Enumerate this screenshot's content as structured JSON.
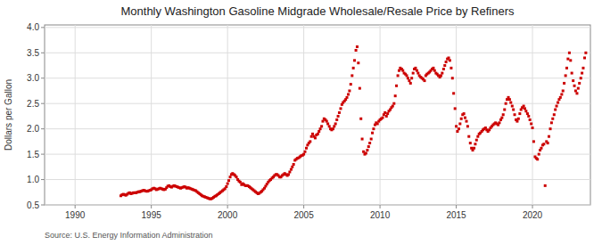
{
  "chart_data": {
    "type": "scatter",
    "title": "Monthly Washington Gasoline Midgrade Wholesale/Resale Price by Refiners",
    "ylabel": "Dollars per Gallon",
    "source": "Source: U.S. Energy Information Administration",
    "color": "#cc0000",
    "marker": "square",
    "grid": true,
    "xlim": [
      1988.0,
      2023.8
    ],
    "ylim": [
      0.5,
      4.05
    ],
    "xticks": [
      1990,
      1995,
      2000,
      2005,
      2010,
      2015,
      2020
    ],
    "yticks": [
      0.5,
      {
        "value": 1.0,
        "label": "1.0"
      },
      1.5,
      {
        "value": 2.0,
        "label": "2.0"
      },
      2.5,
      {
        "value": 3.0,
        "label": "3.0"
      },
      3.5,
      {
        "value": 4.0,
        "label": "4.0"
      }
    ],
    "x": [
      1993.0,
      1993.08,
      1993.17,
      1993.25,
      1993.33,
      1993.42,
      1993.5,
      1993.58,
      1993.67,
      1993.75,
      1993.83,
      1993.92,
      1994.0,
      1994.08,
      1994.17,
      1994.25,
      1994.33,
      1994.42,
      1994.5,
      1994.58,
      1994.67,
      1994.75,
      1994.83,
      1994.92,
      1995.0,
      1995.08,
      1995.17,
      1995.25,
      1995.33,
      1995.42,
      1995.5,
      1995.58,
      1995.67,
      1995.75,
      1995.83,
      1995.92,
      1996.0,
      1996.08,
      1996.17,
      1996.25,
      1996.33,
      1996.42,
      1996.5,
      1996.58,
      1996.67,
      1996.75,
      1996.83,
      1996.92,
      1997.0,
      1997.08,
      1997.17,
      1997.25,
      1997.33,
      1997.42,
      1997.5,
      1997.58,
      1997.67,
      1997.75,
      1997.83,
      1997.92,
      1998.0,
      1998.08,
      1998.17,
      1998.25,
      1998.33,
      1998.42,
      1998.5,
      1998.58,
      1998.67,
      1998.75,
      1998.83,
      1998.92,
      1999.0,
      1999.08,
      1999.17,
      1999.25,
      1999.33,
      1999.42,
      1999.5,
      1999.58,
      1999.67,
      1999.75,
      1999.83,
      1999.92,
      2000.0,
      2000.08,
      2000.17,
      2000.25,
      2000.33,
      2000.42,
      2000.5,
      2000.58,
      2000.67,
      2000.75,
      2000.83,
      2000.92,
      2001.0,
      2001.08,
      2001.17,
      2001.25,
      2001.33,
      2001.42,
      2001.5,
      2001.58,
      2001.67,
      2001.75,
      2001.83,
      2001.92,
      2002.0,
      2002.08,
      2002.17,
      2002.25,
      2002.33,
      2002.42,
      2002.5,
      2002.58,
      2002.67,
      2002.75,
      2002.83,
      2002.92,
      2003.0,
      2003.08,
      2003.17,
      2003.25,
      2003.33,
      2003.42,
      2003.5,
      2003.58,
      2003.67,
      2003.75,
      2003.83,
      2003.92,
      2004.0,
      2004.08,
      2004.17,
      2004.25,
      2004.33,
      2004.42,
      2004.5,
      2004.58,
      2004.67,
      2004.75,
      2004.83,
      2004.92,
      2005.0,
      2005.08,
      2005.17,
      2005.25,
      2005.33,
      2005.42,
      2005.5,
      2005.58,
      2005.67,
      2005.75,
      2005.83,
      2005.92,
      2006.0,
      2006.08,
      2006.17,
      2006.25,
      2006.33,
      2006.42,
      2006.5,
      2006.58,
      2006.67,
      2006.75,
      2006.83,
      2006.92,
      2007.0,
      2007.08,
      2007.17,
      2007.25,
      2007.33,
      2007.42,
      2007.5,
      2007.58,
      2007.67,
      2007.75,
      2007.83,
      2007.92,
      2008.0,
      2008.08,
      2008.17,
      2008.25,
      2008.33,
      2008.42,
      2008.5,
      2008.58,
      2008.67,
      2008.75,
      2008.83,
      2008.92,
      2009.0,
      2009.08,
      2009.17,
      2009.25,
      2009.33,
      2009.42,
      2009.5,
      2009.58,
      2009.67,
      2009.75,
      2009.83,
      2009.92,
      2010.0,
      2010.08,
      2010.17,
      2010.25,
      2010.33,
      2010.42,
      2010.5,
      2010.58,
      2010.67,
      2010.75,
      2010.83,
      2010.92,
      2011.0,
      2011.08,
      2011.17,
      2011.25,
      2011.33,
      2011.42,
      2011.5,
      2011.58,
      2011.67,
      2011.75,
      2011.83,
      2011.92,
      2012.0,
      2012.08,
      2012.17,
      2012.25,
      2012.33,
      2012.42,
      2012.5,
      2012.58,
      2012.67,
      2012.75,
      2012.83,
      2012.92,
      2013.0,
      2013.08,
      2013.17,
      2013.25,
      2013.33,
      2013.42,
      2013.5,
      2013.58,
      2013.67,
      2013.75,
      2013.83,
      2013.92,
      2014.0,
      2014.08,
      2014.17,
      2014.25,
      2014.33,
      2014.42,
      2014.5,
      2014.58,
      2014.67,
      2014.75,
      2014.83,
      2014.92,
      2015.0,
      2015.08,
      2015.17,
      2015.25,
      2015.33,
      2015.42,
      2015.5,
      2015.58,
      2015.67,
      2015.75,
      2015.83,
      2015.92,
      2016.0,
      2016.08,
      2016.17,
      2016.25,
      2016.33,
      2016.42,
      2016.5,
      2016.58,
      2016.67,
      2016.75,
      2016.83,
      2016.92,
      2017.0,
      2017.08,
      2017.17,
      2017.25,
      2017.33,
      2017.42,
      2017.5,
      2017.58,
      2017.67,
      2017.75,
      2017.83,
      2017.92,
      2018.0,
      2018.08,
      2018.17,
      2018.25,
      2018.33,
      2018.42,
      2018.5,
      2018.58,
      2018.67,
      2018.75,
      2018.83,
      2018.92,
      2019.0,
      2019.08,
      2019.17,
      2019.25,
      2019.33,
      2019.42,
      2019.5,
      2019.58,
      2019.67,
      2019.75,
      2019.83,
      2019.92,
      2020.0,
      2020.08,
      2020.17,
      2020.25,
      2020.33,
      2020.42,
      2020.5,
      2020.58,
      2020.67,
      2020.75,
      2020.83,
      2020.92,
      2021.0,
      2021.08,
      2021.17,
      2021.25,
      2021.33,
      2021.42,
      2021.5,
      2021.58,
      2021.67,
      2021.75,
      2021.83,
      2021.92,
      2022.0,
      2022.08,
      2022.17,
      2022.25,
      2022.33,
      2022.42,
      2022.5,
      2022.58,
      2022.67,
      2022.75,
      2022.83,
      2022.92,
      2023.0,
      2023.08,
      2023.17,
      2023.25,
      2023.33,
      2023.42,
      2023.5
    ],
    "values": [
      0.68,
      0.7,
      0.71,
      0.7,
      0.69,
      0.71,
      0.73,
      0.74,
      0.72,
      0.73,
      0.74,
      0.74,
      0.74,
      0.75,
      0.76,
      0.76,
      0.77,
      0.78,
      0.79,
      0.78,
      0.77,
      0.77,
      0.78,
      0.79,
      0.8,
      0.82,
      0.83,
      0.82,
      0.8,
      0.81,
      0.82,
      0.83,
      0.82,
      0.81,
      0.8,
      0.81,
      0.84,
      0.87,
      0.88,
      0.86,
      0.85,
      0.87,
      0.88,
      0.87,
      0.86,
      0.85,
      0.84,
      0.83,
      0.84,
      0.85,
      0.86,
      0.85,
      0.83,
      0.84,
      0.83,
      0.82,
      0.81,
      0.8,
      0.79,
      0.78,
      0.76,
      0.74,
      0.72,
      0.7,
      0.68,
      0.67,
      0.66,
      0.65,
      0.64,
      0.63,
      0.62,
      0.62,
      0.63,
      0.65,
      0.67,
      0.68,
      0.7,
      0.72,
      0.74,
      0.76,
      0.78,
      0.8,
      0.82,
      0.86,
      0.92,
      0.98,
      1.05,
      1.1,
      1.12,
      1.1,
      1.08,
      1.05,
      1.0,
      0.97,
      0.95,
      0.9,
      0.92,
      0.9,
      0.88,
      0.88,
      0.88,
      0.86,
      0.84,
      0.82,
      0.8,
      0.78,
      0.76,
      0.74,
      0.72,
      0.73,
      0.75,
      0.77,
      0.8,
      0.83,
      0.87,
      0.91,
      0.95,
      0.98,
      1.0,
      1.03,
      1.05,
      1.08,
      1.1,
      1.1,
      1.08,
      1.05,
      1.05,
      1.08,
      1.1,
      1.12,
      1.1,
      1.08,
      1.1,
      1.15,
      1.2,
      1.25,
      1.3,
      1.38,
      1.4,
      1.42,
      1.43,
      1.45,
      1.47,
      1.48,
      1.5,
      1.55,
      1.62,
      1.68,
      1.72,
      1.75,
      1.85,
      1.9,
      1.85,
      1.82,
      1.88,
      1.9,
      1.95,
      2.0,
      2.05,
      2.15,
      2.2,
      2.18,
      2.15,
      2.1,
      2.05,
      2.0,
      1.98,
      2.0,
      2.05,
      2.1,
      2.18,
      2.25,
      2.32,
      2.4,
      2.48,
      2.52,
      2.55,
      2.58,
      2.62,
      2.68,
      2.75,
      2.88,
      3.05,
      3.2,
      3.35,
      3.55,
      3.62,
      3.3,
      2.8,
      2.2,
      1.8,
      1.55,
      1.5,
      1.52,
      1.58,
      1.65,
      1.72,
      1.8,
      1.92,
      2.0,
      2.08,
      2.12,
      2.1,
      2.15,
      2.18,
      2.2,
      2.22,
      2.28,
      2.32,
      2.25,
      2.3,
      2.35,
      2.38,
      2.42,
      2.45,
      2.5,
      2.65,
      2.85,
      3.05,
      3.15,
      3.2,
      3.18,
      3.15,
      3.1,
      3.08,
      3.05,
      3.0,
      2.95,
      2.9,
      3.0,
      3.1,
      3.18,
      3.2,
      3.15,
      3.1,
      3.05,
      3.02,
      3.0,
      2.98,
      2.95,
      3.05,
      3.08,
      3.1,
      3.12,
      3.15,
      3.18,
      3.2,
      3.15,
      3.1,
      3.08,
      3.05,
      3.02,
      3.05,
      3.1,
      3.18,
      3.25,
      3.32,
      3.38,
      3.4,
      3.35,
      3.2,
      3.0,
      2.7,
      2.4,
      2.05,
      1.95,
      2.0,
      2.1,
      2.2,
      2.28,
      2.3,
      2.22,
      2.15,
      2.05,
      1.85,
      1.72,
      1.62,
      1.58,
      1.62,
      1.7,
      1.78,
      1.85,
      1.9,
      1.92,
      1.95,
      1.98,
      2.0,
      2.02,
      1.98,
      1.95,
      1.98,
      2.02,
      2.05,
      2.08,
      2.1,
      2.12,
      2.1,
      2.08,
      2.12,
      2.18,
      2.22,
      2.28,
      2.38,
      2.5,
      2.58,
      2.62,
      2.58,
      2.52,
      2.45,
      2.38,
      2.28,
      2.18,
      2.15,
      2.2,
      2.3,
      2.38,
      2.42,
      2.45,
      2.4,
      2.35,
      2.3,
      2.25,
      2.18,
      2.1,
      2.02,
      1.75,
      1.45,
      1.42,
      1.4,
      1.5,
      1.58,
      1.62,
      1.68,
      1.7,
      0.88,
      1.75,
      1.72,
      1.85,
      2.0,
      2.12,
      2.2,
      2.28,
      2.38,
      2.45,
      2.52,
      2.58,
      2.62,
      2.68,
      2.75,
      2.9,
      3.05,
      3.2,
      3.38,
      3.5,
      3.35,
      3.1,
      2.95,
      2.85,
      2.75,
      2.7,
      2.8,
      2.9,
      3.0,
      3.1,
      3.2,
      3.4,
      3.5
    ]
  }
}
